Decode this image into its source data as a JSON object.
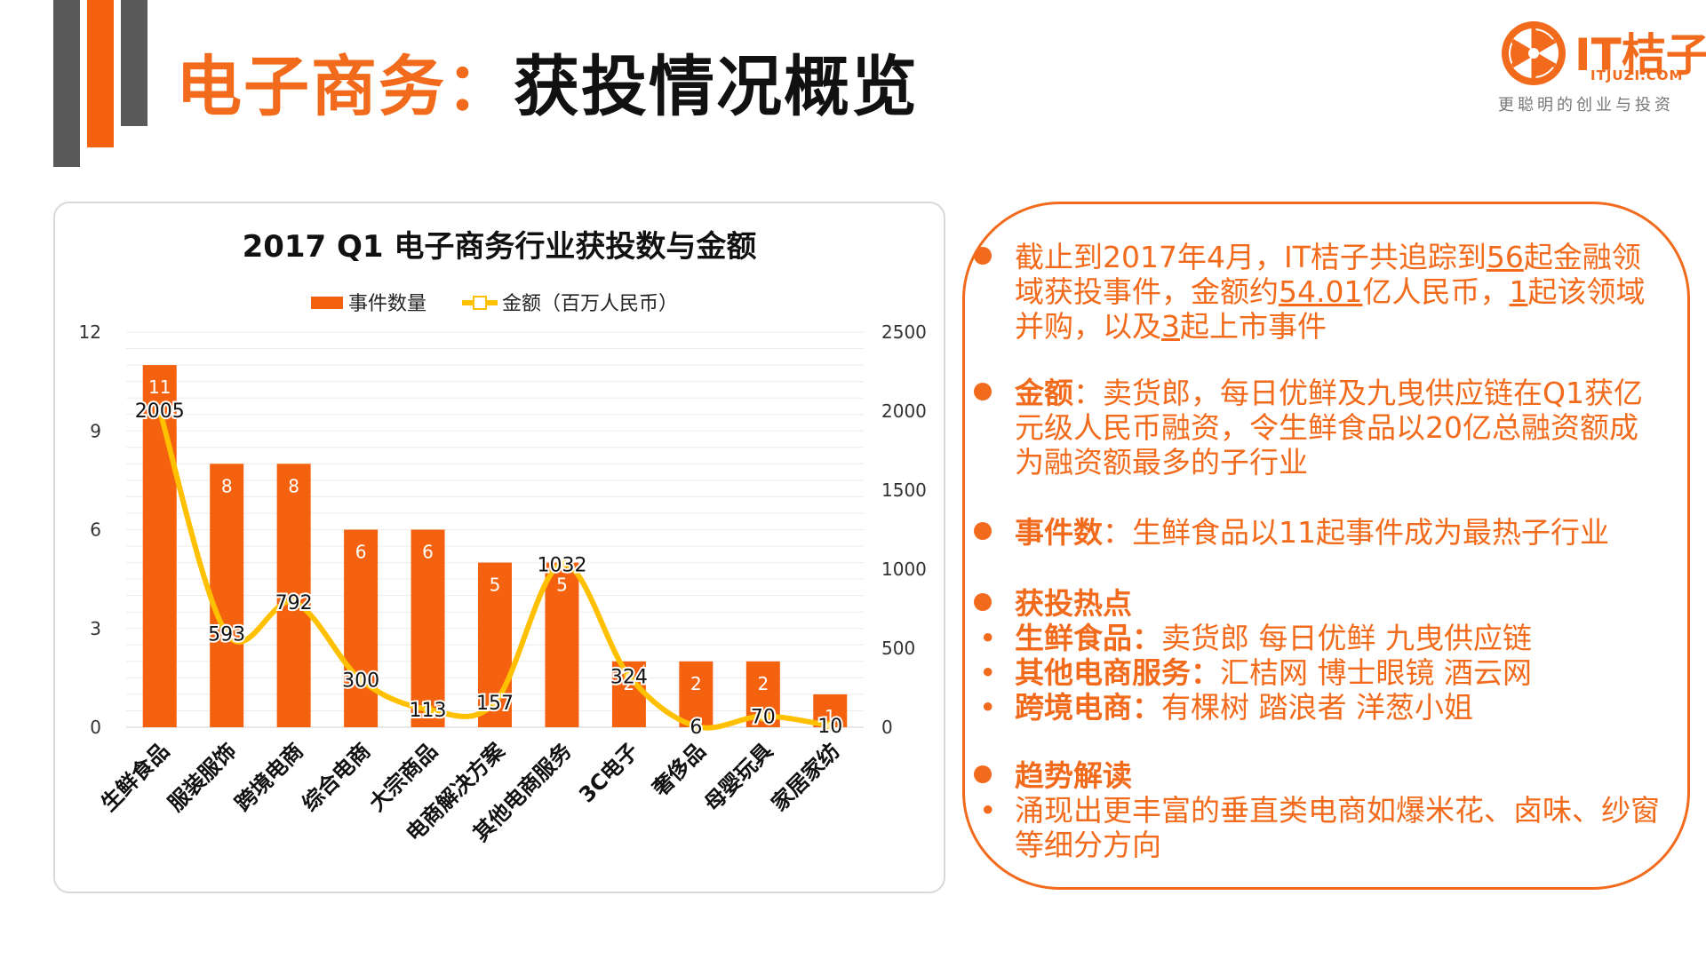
{
  "page": {
    "title_prefix": "电子商务：",
    "title_main": "获投情况概览"
  },
  "logo": {
    "brand": "IT桔子",
    "domain": "ITJUZI.COM",
    "slogan": "更聪明的创业与投资"
  },
  "colors": {
    "accent": "#f26a1b",
    "bar": "#f5620f",
    "line": "#ffc000",
    "dark_gray": "#595959"
  },
  "chart_data": {
    "type": "bar",
    "title": "2017 Q1 电子商务行业获投数与金额",
    "categories": [
      "生鲜食品",
      "服装服饰",
      "跨境电商",
      "综合电商",
      "大宗商品",
      "电商解决方案",
      "其他电商服务",
      "3C电子",
      "奢侈品",
      "母婴玩具",
      "家居家纺"
    ],
    "series": [
      {
        "name": "事件数量",
        "type": "bar",
        "axis": "left",
        "values": [
          11,
          8,
          8,
          6,
          6,
          5,
          5,
          2,
          2,
          2,
          1
        ]
      },
      {
        "name": "金额（百万人民币）",
        "type": "line",
        "axis": "right",
        "values": [
          2005,
          593,
          792,
          300,
          113,
          157,
          1032,
          324,
          6,
          70,
          10
        ]
      }
    ],
    "left_axis": {
      "ticks": [
        "0",
        "3",
        "6",
        "9",
        "12"
      ],
      "min": 0,
      "max": 12
    },
    "right_axis": {
      "ticks": [
        "0",
        "500",
        "1000",
        "1500",
        "2000",
        "2500"
      ],
      "min": 0,
      "max": 2500
    },
    "legend_position": "top"
  },
  "summary": {
    "b1": {
      "p1": "截止到2017年4月，IT桔子共追踪到",
      "n1": "56",
      "p2": "起金融领域获投事件，金额约",
      "n2": "54.01",
      "p3": "亿人民币，",
      "n3": "1",
      "p4": "起该领域并购，以及",
      "n4": "3",
      "p5": "起上市事件"
    },
    "b2": {
      "label": "金额",
      "text": "：卖货郎，每日优鲜及九曳供应链在Q1获亿元级人民币融资，令生鲜食品以20亿总融资额成为融资额最多的子行业"
    },
    "b3": {
      "label": "事件数",
      "text": "：生鲜食品以11起事件成为最热子行业"
    },
    "b4": {
      "label": "获投热点",
      "items": [
        {
          "label": "生鲜食品：",
          "text": "卖货郎 每日优鲜 九曳供应链"
        },
        {
          "label": "其他电商服务：",
          "text": "汇桔网 博士眼镜 酒云网"
        },
        {
          "label": "跨境电商：",
          "text": "有棵树 踏浪者 洋葱小姐"
        }
      ]
    },
    "b5": {
      "label": "趋势解读",
      "text": "涌现出更丰富的垂直类电商如爆米花、卤味、纱窗等细分方向"
    }
  }
}
